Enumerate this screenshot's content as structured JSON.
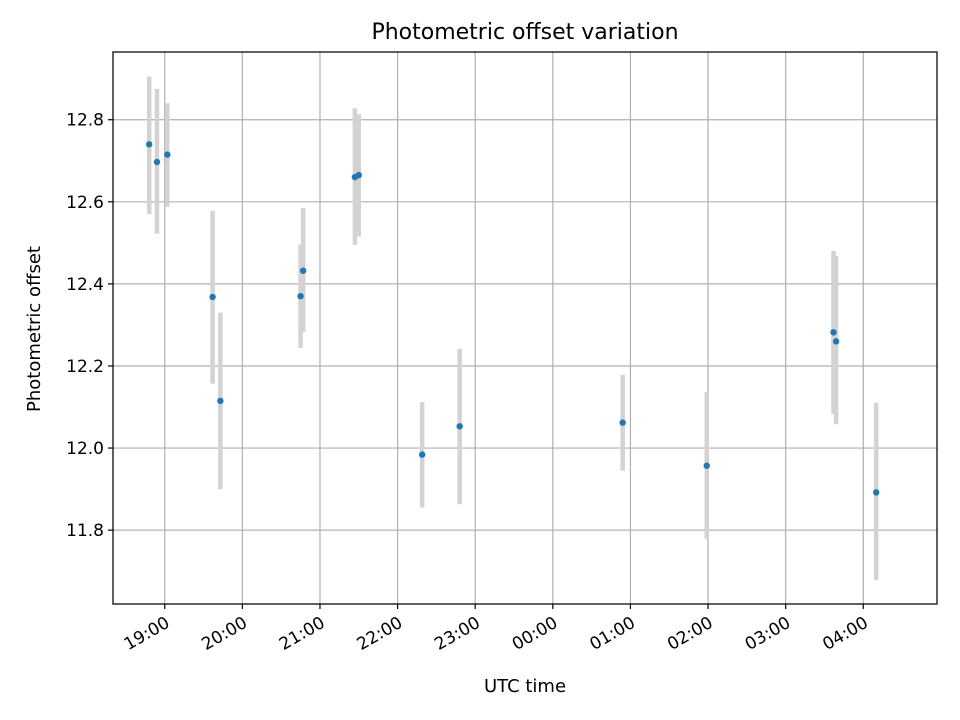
{
  "chart_data": {
    "type": "scatter",
    "title": "Photometric offset variation",
    "xlabel": "UTC time",
    "ylabel": "Photometric offset",
    "x_ticks": [
      "19:00",
      "20:00",
      "21:00",
      "22:00",
      "23:00",
      "00:00",
      "01:00",
      "02:00",
      "03:00",
      "04:00"
    ],
    "y_ticks": [
      "11.8",
      "12.0",
      "12.2",
      "12.4",
      "12.6",
      "12.8"
    ],
    "xlim": [
      "18:20",
      "04:57"
    ],
    "ylim": [
      11.62,
      12.965
    ],
    "grid": true,
    "colors": {
      "point": "#1f77b4",
      "errorbar": "#d3d3d3",
      "grid": "#b0b0b0"
    },
    "points": [
      {
        "x": "18:48",
        "y": 12.74,
        "yerr_low": 12.57,
        "yerr_high": 12.905
      },
      {
        "x": "18:54",
        "y": 12.697,
        "yerr_low": 12.522,
        "yerr_high": 12.875
      },
      {
        "x": "19:02",
        "y": 12.715,
        "yerr_low": 12.588,
        "yerr_high": 12.84
      },
      {
        "x": "19:37",
        "y": 12.368,
        "yerr_low": 12.157,
        "yerr_high": 12.578
      },
      {
        "x": "19:43",
        "y": 12.115,
        "yerr_low": 11.9,
        "yerr_high": 12.33
      },
      {
        "x": "20:45",
        "y": 12.37,
        "yerr_low": 12.244,
        "yerr_high": 12.496
      },
      {
        "x": "20:47",
        "y": 12.432,
        "yerr_low": 12.283,
        "yerr_high": 12.585
      },
      {
        "x": "21:27",
        "y": 12.66,
        "yerr_low": 12.495,
        "yerr_high": 12.828
      },
      {
        "x": "21:30",
        "y": 12.665,
        "yerr_low": 12.515,
        "yerr_high": 12.813
      },
      {
        "x": "22:19",
        "y": 11.984,
        "yerr_low": 11.855,
        "yerr_high": 12.112
      },
      {
        "x": "22:48",
        "y": 12.053,
        "yerr_low": 11.863,
        "yerr_high": 12.242
      },
      {
        "x": "00:54",
        "y": 12.062,
        "yerr_low": 11.945,
        "yerr_high": 12.178
      },
      {
        "x": "01:59",
        "y": 11.957,
        "yerr_low": 11.778,
        "yerr_high": 12.137
      },
      {
        "x": "03:37",
        "y": 12.282,
        "yerr_low": 12.083,
        "yerr_high": 12.48
      },
      {
        "x": "03:39",
        "y": 12.26,
        "yerr_low": 12.058,
        "yerr_high": 12.468
      },
      {
        "x": "04:10",
        "y": 11.892,
        "yerr_low": 11.678,
        "yerr_high": 12.11
      }
    ]
  }
}
